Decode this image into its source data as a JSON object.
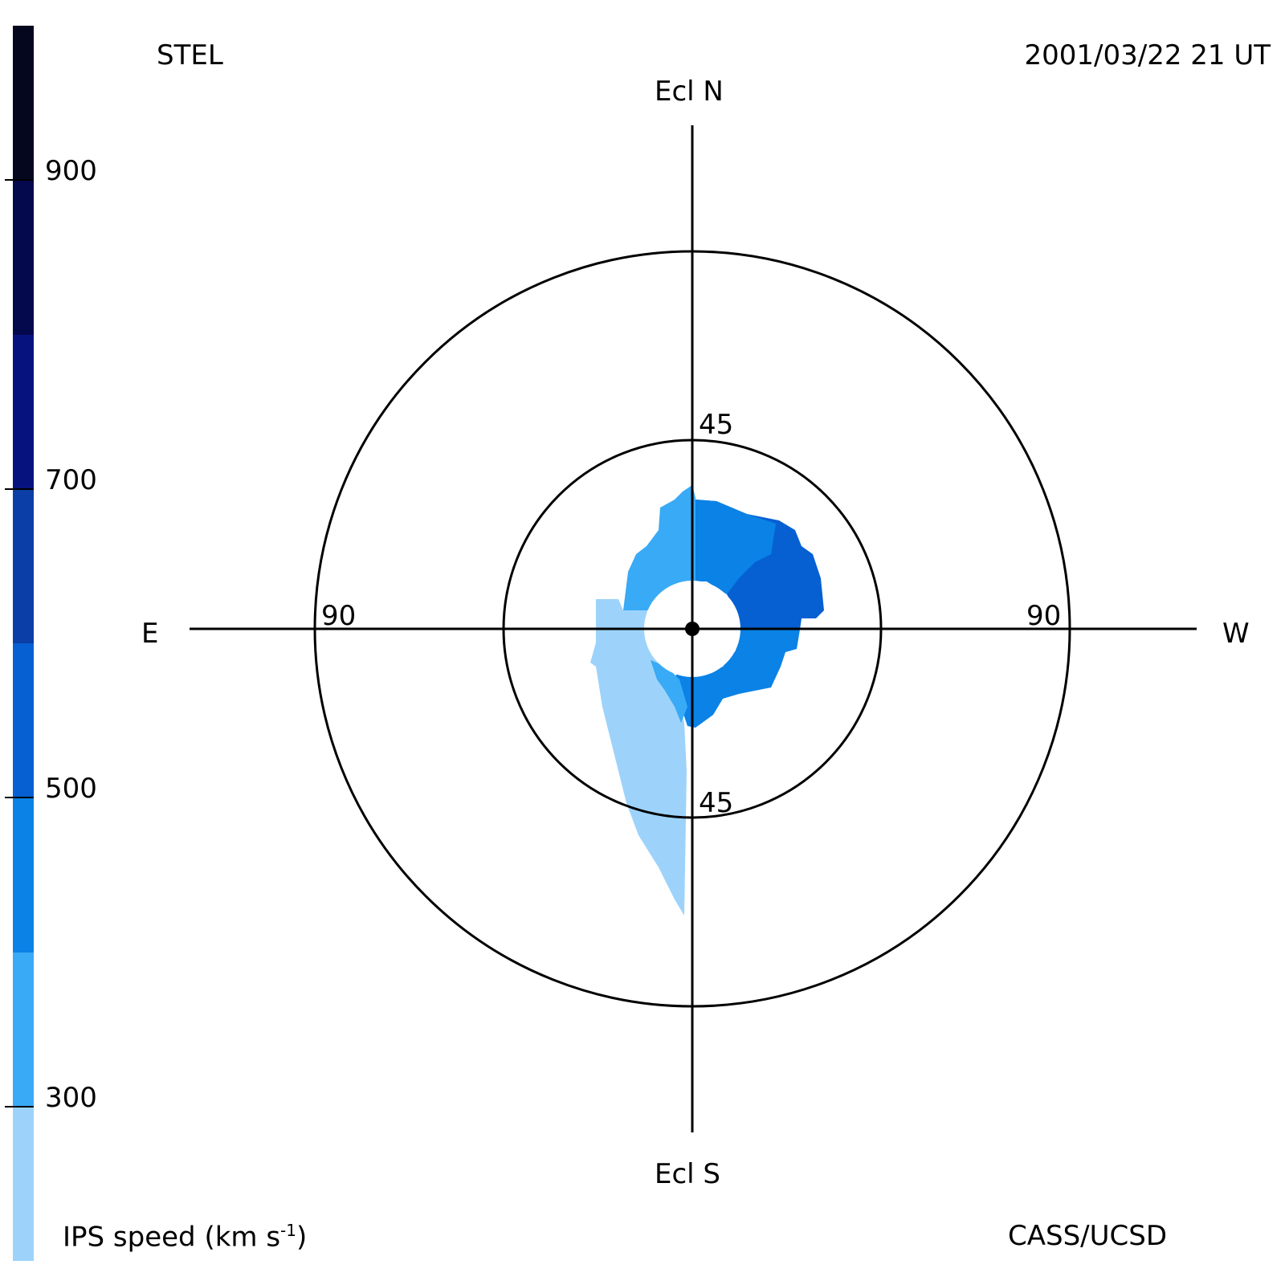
{
  "header": {
    "left": "STEL",
    "right": "2001/03/22 21 UT"
  },
  "footer": {
    "left_prefix": "IPS speed (km s",
    "left_sup": "-1",
    "left_suffix": ")",
    "right": "CASS/UCSD"
  },
  "chart_data": {
    "type": "heatmap",
    "title": "",
    "projection": "polar sky map",
    "directions": {
      "north": "Ecl N",
      "south": "Ecl S",
      "east": "E",
      "west": "W"
    },
    "ring_labels": {
      "inner_top": "45",
      "inner_bottom": "45",
      "outer_left": "90",
      "outer_right": "90"
    },
    "rings_deg": [
      45,
      90
    ],
    "colorbar": {
      "label": "IPS speed (km s-1)",
      "range": [
        200,
        1000
      ],
      "ticks": [
        "900",
        "700",
        "500",
        "300"
      ],
      "tick_values": [
        900,
        700,
        500,
        300
      ],
      "levels": [
        {
          "from": 200,
          "to": 300,
          "color": "#9dd3fb"
        },
        {
          "from": 300,
          "to": 400,
          "color": "#39aaf5"
        },
        {
          "from": 400,
          "to": 500,
          "color": "#0a82e6"
        },
        {
          "from": 500,
          "to": 600,
          "color": "#0660d2"
        },
        {
          "from": 600,
          "to": 700,
          "color": "#0b3ea6"
        },
        {
          "from": 700,
          "to": 800,
          "color": "#06137f"
        },
        {
          "from": 800,
          "to": 900,
          "color": "#04084c"
        },
        {
          "from": 900,
          "to": 1000,
          "color": "#04071e"
        }
      ]
    },
    "regions": [
      {
        "name": "west",
        "speed_range": [
          500,
          600
        ],
        "color": "#0660d2"
      },
      {
        "name": "north",
        "speed_range": [
          400,
          500
        ],
        "color": "#0a82e6"
      },
      {
        "name": "north-east",
        "speed_range": [
          300,
          400
        ],
        "color": "#39aaf5"
      },
      {
        "name": "south-west",
        "speed_range": [
          400,
          500
        ],
        "color": "#0a82e6"
      },
      {
        "name": "south-east tail",
        "speed_range": [
          200,
          300
        ],
        "color": "#9dd3fb"
      }
    ]
  }
}
